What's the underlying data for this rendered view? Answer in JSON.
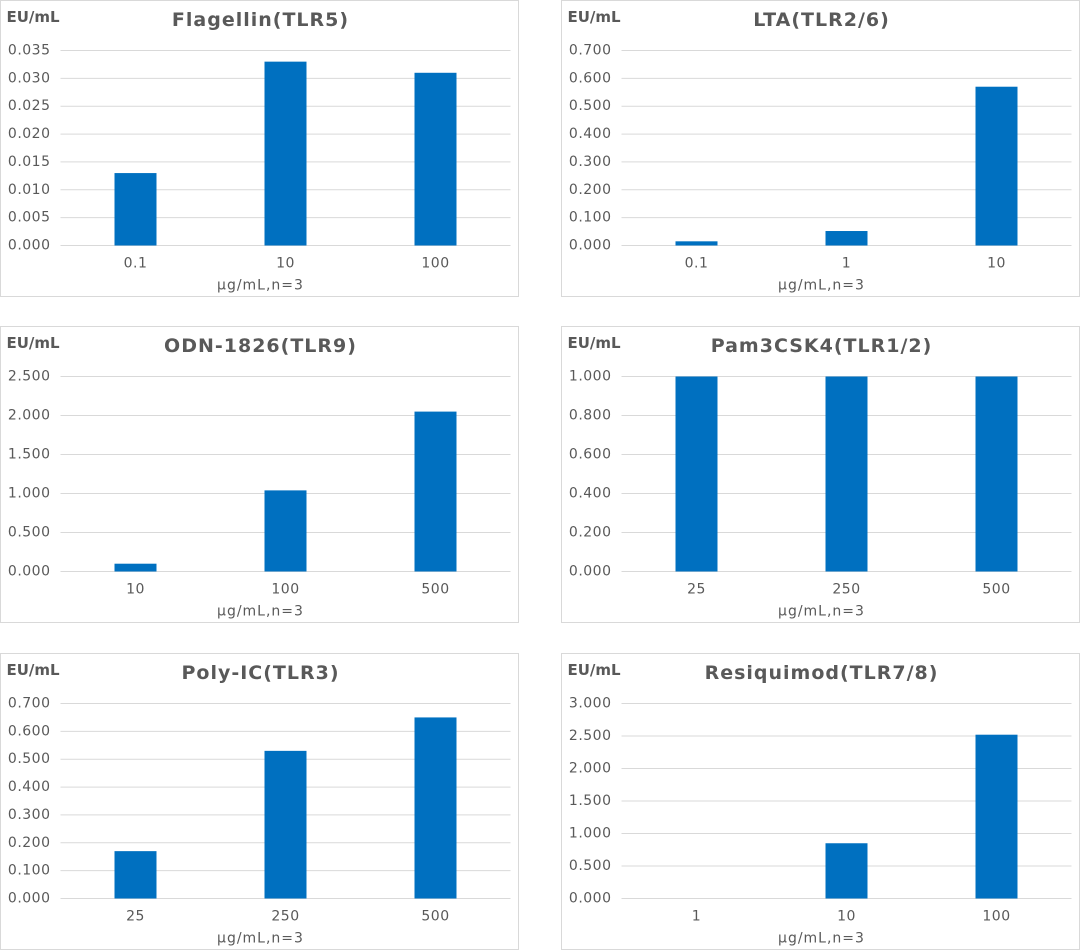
{
  "chart_data": [
    {
      "type": "bar",
      "title": "Flagellin(TLR5)",
      "y_label": "EU/mL",
      "x_label": "μg/mL,n=3",
      "color": "#0070c0",
      "grid": true,
      "categories": [
        "0.1",
        "10",
        "100"
      ],
      "values": [
        0.013,
        0.033,
        0.031
      ],
      "ylim": [
        0,
        0.035
      ],
      "yticks": [
        {
          "value": 0,
          "label": "0.000"
        },
        {
          "value": 0.005,
          "label": "0.005"
        },
        {
          "value": 0.01,
          "label": "0.010"
        },
        {
          "value": 0.015,
          "label": "0.015"
        },
        {
          "value": 0.02,
          "label": "0.020"
        },
        {
          "value": 0.025,
          "label": "0.025"
        },
        {
          "value": 0.03,
          "label": "0.030"
        },
        {
          "value": 0.035,
          "label": "0.035"
        }
      ]
    },
    {
      "type": "bar",
      "title": "LTA(TLR2/6)",
      "y_label": "EU/mL",
      "x_label": "μg/mL,n=3",
      "color": "#0070c0",
      "grid": true,
      "categories": [
        "0.1",
        "1",
        "10"
      ],
      "values": [
        0.015,
        0.052,
        0.57
      ],
      "ylim": [
        0,
        0.7
      ],
      "yticks": [
        {
          "value": 0,
          "label": "0.000"
        },
        {
          "value": 0.1,
          "label": "0.100"
        },
        {
          "value": 0.2,
          "label": "0.200"
        },
        {
          "value": 0.3,
          "label": "0.300"
        },
        {
          "value": 0.4,
          "label": "0.400"
        },
        {
          "value": 0.5,
          "label": "0.500"
        },
        {
          "value": 0.6,
          "label": "0.600"
        },
        {
          "value": 0.7,
          "label": "0.700"
        }
      ]
    },
    {
      "type": "bar",
      "title": "ODN-1826(TLR9)",
      "y_label": "EU/mL",
      "x_label": "μg/mL,n=3",
      "color": "#0070c0",
      "grid": true,
      "categories": [
        "10",
        "100",
        "500"
      ],
      "values": [
        0.1,
        1.04,
        2.05
      ],
      "ylim": [
        0,
        2.5
      ],
      "yticks": [
        {
          "value": 0,
          "label": "0.000"
        },
        {
          "value": 0.5,
          "label": "0.500"
        },
        {
          "value": 1,
          "label": "1.000"
        },
        {
          "value": 1.5,
          "label": "1.500"
        },
        {
          "value": 2,
          "label": "2.000"
        },
        {
          "value": 2.5,
          "label": "2.500"
        }
      ]
    },
    {
      "type": "bar",
      "title": "Pam3CSK4(TLR1/2)",
      "y_label": "EU/mL",
      "x_label": "μg/mL,n=3",
      "color": "#0070c0",
      "grid": true,
      "categories": [
        "25",
        "250",
        "500"
      ],
      "values": [
        1.0,
        1.0,
        1.0
      ],
      "ylim": [
        0,
        1.0
      ],
      "yticks": [
        {
          "value": 0,
          "label": "0.000"
        },
        {
          "value": 0.2,
          "label": "0.200"
        },
        {
          "value": 0.4,
          "label": "0.400"
        },
        {
          "value": 0.6,
          "label": "0.600"
        },
        {
          "value": 0.8,
          "label": "0.800"
        },
        {
          "value": 1.0,
          "label": "1.000"
        }
      ]
    },
    {
      "type": "bar",
      "title": "Poly-IC(TLR3)",
      "y_label": "EU/mL",
      "x_label": "μg/mL,n=3",
      "color": "#0070c0",
      "grid": true,
      "categories": [
        "25",
        "250",
        "500"
      ],
      "values": [
        0.17,
        0.53,
        0.65
      ],
      "ylim": [
        0,
        0.7
      ],
      "yticks": [
        {
          "value": 0,
          "label": "0.000"
        },
        {
          "value": 0.1,
          "label": "0.100"
        },
        {
          "value": 0.2,
          "label": "0.200"
        },
        {
          "value": 0.3,
          "label": "0.300"
        },
        {
          "value": 0.4,
          "label": "0.400"
        },
        {
          "value": 0.5,
          "label": "0.500"
        },
        {
          "value": 0.6,
          "label": "0.600"
        },
        {
          "value": 0.7,
          "label": "0.700"
        }
      ]
    },
    {
      "type": "bar",
      "title": "Resiquimod(TLR7/8)",
      "y_label": "EU/mL",
      "x_label": "μg/mL,n=3",
      "color": "#0070c0",
      "grid": true,
      "categories": [
        "1",
        "10",
        "100"
      ],
      "values": [
        0,
        0.85,
        2.52
      ],
      "ylim": [
        0,
        3
      ],
      "yticks": [
        {
          "value": 0,
          "label": "0.000"
        },
        {
          "value": 0.5,
          "label": "0.500"
        },
        {
          "value": 1,
          "label": "1.000"
        },
        {
          "value": 1.5,
          "label": "1.500"
        },
        {
          "value": 2,
          "label": "2.000"
        },
        {
          "value": 2.5,
          "label": "2.500"
        },
        {
          "value": 3,
          "label": "3.000"
        }
      ]
    }
  ]
}
